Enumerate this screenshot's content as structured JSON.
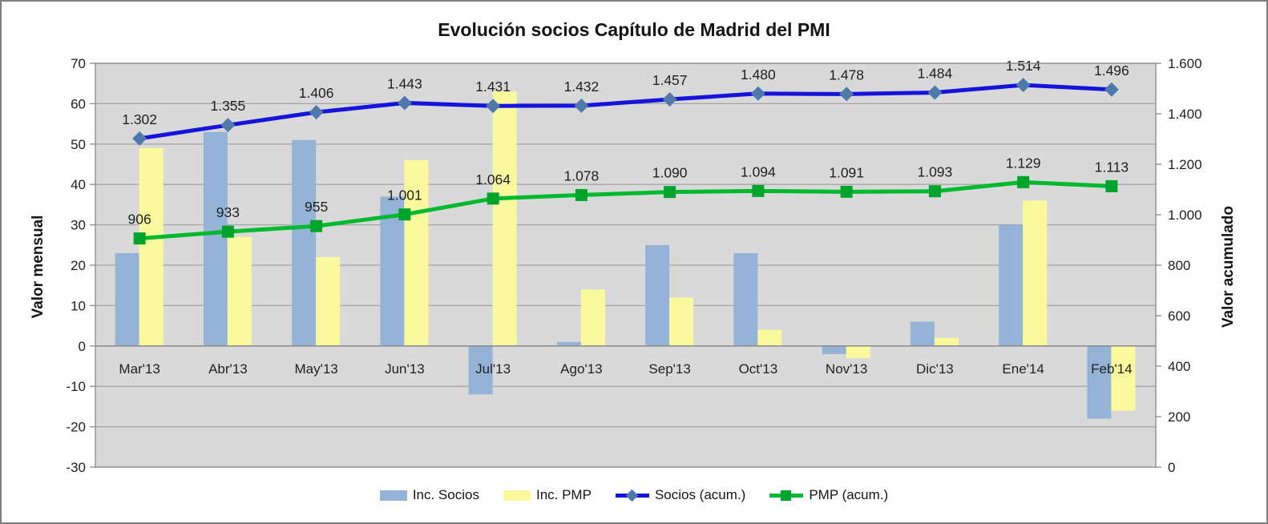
{
  "chart_data": {
    "type": "combo-bar-line",
    "title": "Evolución socios Capítulo de Madrid del PMI",
    "categories": [
      "Mar'13",
      "Abr'13",
      "May'13",
      "Jun'13",
      "Jul'13",
      "Ago'13",
      "Sep'13",
      "Oct'13",
      "Nov'13",
      "Dic'13",
      "Ene'14",
      "Feb'14"
    ],
    "bar_series": [
      {
        "name": "Inc. Socios",
        "color": "#95B3D7",
        "axis": "left",
        "values": [
          23,
          53,
          51,
          37,
          -12,
          1,
          25,
          23,
          -2,
          6,
          30,
          -18
        ]
      },
      {
        "name": "Inc. PMP",
        "color": "#FBF99E",
        "axis": "left",
        "values": [
          49,
          27,
          22,
          46,
          63,
          14,
          12,
          4,
          -3,
          2,
          36,
          -16
        ]
      }
    ],
    "line_series": [
      {
        "name": "Socios (acum.)",
        "color": "#1414DC",
        "marker": "diamond",
        "marker_color": "#4E79AC",
        "axis": "right",
        "values": [
          1302,
          1355,
          1406,
          1443,
          1431,
          1432,
          1457,
          1480,
          1478,
          1484,
          1514,
          1496
        ],
        "labels": [
          "1.302",
          "1.355",
          "1.406",
          "1.443",
          "1.431",
          "1.432",
          "1.457",
          "1.480",
          "1.478",
          "1.484",
          "1.514",
          "1.496"
        ]
      },
      {
        "name": "PMP (acum.)",
        "color": "#00B92E",
        "marker": "square",
        "marker_color": "#00A32B",
        "axis": "right",
        "values": [
          906,
          933,
          955,
          1001,
          1064,
          1078,
          1090,
          1094,
          1091,
          1093,
          1129,
          1113
        ],
        "labels": [
          "906",
          "933",
          "955",
          "1.001",
          "1.064",
          "1.078",
          "1.090",
          "1.094",
          "1.091",
          "1.093",
          "1.129",
          "1.113"
        ]
      }
    ],
    "left_axis": {
      "title": "Valor mensual",
      "min": -30,
      "max": 70,
      "step": 10,
      "tick_labels": [
        "70",
        "60",
        "50",
        "40",
        "30",
        "20",
        "10",
        "0",
        "-10",
        "-20",
        "-30"
      ]
    },
    "right_axis": {
      "title": "Valor acumulado",
      "min": 0,
      "max": 1600,
      "step": 200,
      "tick_labels": [
        "1.600",
        "1.400",
        "1.200",
        "1.000",
        "800",
        "600",
        "400",
        "200",
        "0"
      ]
    },
    "legend_position": "bottom",
    "grid": true,
    "plot_bg": "#D9D9D9",
    "gridline_color": "#A4A4A4",
    "axis_line_color": "#8A8A8A",
    "text_color": "#1f1f1f"
  }
}
